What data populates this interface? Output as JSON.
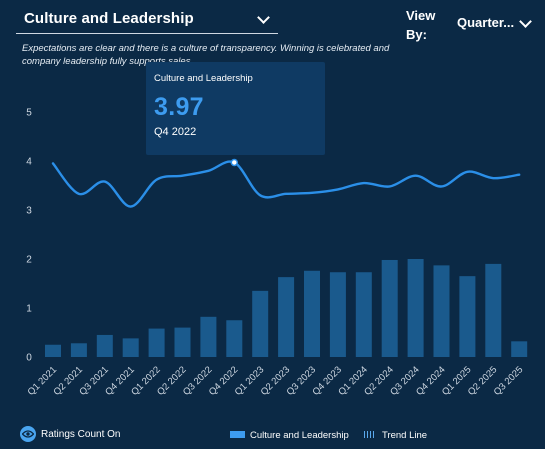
{
  "header": {
    "metric_label": "Culture and Leadership",
    "view_by_label": "View By:",
    "period_label": "Quarter..."
  },
  "description": "Expectations are clear and there is a culture of transparency. Winning is celebrated and company leadership fully supports sales.",
  "tooltip": {
    "metric": "Culture and Leadership",
    "value": "3.97",
    "period": "Q4 2022"
  },
  "footer": {
    "ratings_toggle_label": "Ratings Count On",
    "legend_series": "Culture and Leadership",
    "legend_trend": "Trend Line"
  },
  "colors": {
    "background": "#0b2945",
    "line": "#2b8fe8",
    "bar": "#1c5f95",
    "accent": "#3d9cf0",
    "tooltip_bg": "#0f3a63"
  },
  "chart_data": {
    "type": "bar",
    "categories": [
      "Q1 2021",
      "Q2 2021",
      "Q3 2021",
      "Q4 2021",
      "Q1 2022",
      "Q2 2022",
      "Q3 2022",
      "Q4 2022",
      "Q1 2023",
      "Q2 2023",
      "Q3 2023",
      "Q4 2023",
      "Q1 2024",
      "Q2 2024",
      "Q3 2024",
      "Q4 2024",
      "Q1 2025",
      "Q2 2025",
      "Q3 2025"
    ],
    "series": [
      {
        "name": "Culture and Leadership",
        "type": "line",
        "values": [
          3.95,
          3.33,
          3.58,
          3.07,
          3.62,
          3.7,
          3.8,
          3.97,
          3.3,
          3.33,
          3.35,
          3.42,
          3.55,
          3.48,
          3.7,
          3.48,
          3.78,
          3.65,
          3.72
        ]
      },
      {
        "type": "bar",
        "values": [
          0.25,
          0.28,
          0.45,
          0.38,
          0.58,
          0.6,
          0.82,
          0.75,
          1.35,
          1.63,
          1.76,
          1.73,
          1.73,
          1.98,
          2.0,
          1.87,
          1.65,
          1.9,
          0.32
        ]
      }
    ],
    "y_ticks": [
      0,
      1,
      2,
      3,
      4,
      5
    ],
    "ylim": [
      0,
      5.5
    ],
    "grid": false,
    "legend": "bottom",
    "highlight": {
      "category": "Q4 2022",
      "value": 3.97
    }
  }
}
